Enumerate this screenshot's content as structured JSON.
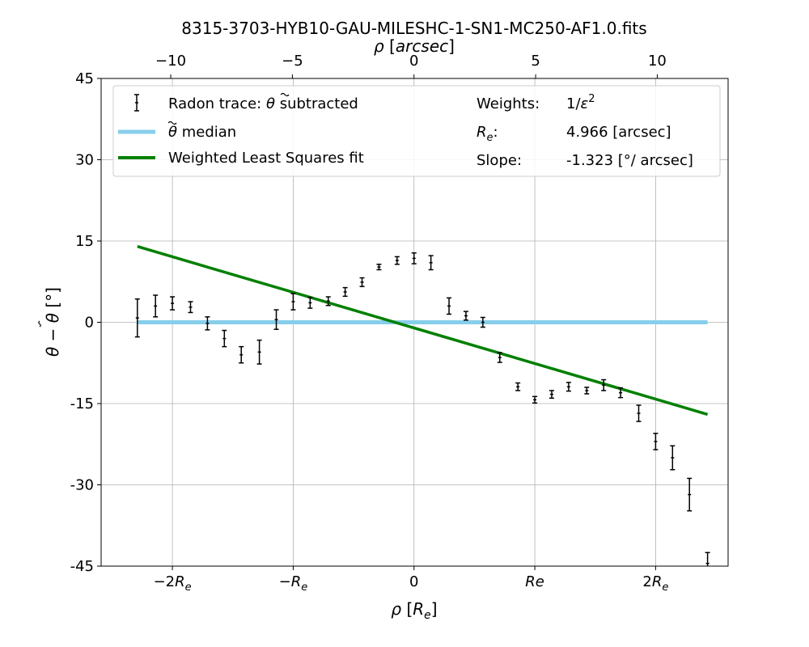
{
  "chart_data": {
    "type": "scatter",
    "title": "8315-3703-HYB10-GAU-MILESHC-1-SN1-MC250-AF1.0.fits",
    "xlabel": "ρ [R_e]",
    "ylabel": "θ − θ̃ [°]",
    "top_xlabel": "ρ [arcsec]",
    "xlim": [
      -2.59,
      2.6
    ],
    "ylim": [
      -45,
      45
    ],
    "grid": true,
    "legend_placement": "top",
    "x_ticks": [
      {
        "value": -2,
        "label": "−2R_e"
      },
      {
        "value": -1,
        "label": "−R_e"
      },
      {
        "value": 0,
        "label": "0"
      },
      {
        "value": 1,
        "label": "Re"
      },
      {
        "value": 2,
        "label": "2R_e"
      }
    ],
    "top_x_ticks": [
      {
        "value": -10,
        "label": "−10"
      },
      {
        "value": -5,
        "label": "−5"
      },
      {
        "value": 0,
        "label": "0"
      },
      {
        "value": 5,
        "label": "5"
      },
      {
        "value": 10,
        "label": "10"
      }
    ],
    "y_ticks": [
      {
        "value": 45,
        "label": "45"
      },
      {
        "value": 30,
        "label": "30"
      },
      {
        "value": 15,
        "label": "15"
      },
      {
        "value": 0,
        "label": "0"
      },
      {
        "value": -15,
        "label": "-15"
      },
      {
        "value": -30,
        "label": "-30"
      },
      {
        "value": -45,
        "label": "-45"
      }
    ],
    "series": [
      {
        "name": "Radon trace: θ̃ subtracted",
        "type": "errorbar",
        "color": "#000000",
        "points": [
          {
            "x": -2.29,
            "y": 0.8,
            "err": 3.5
          },
          {
            "x": -2.14,
            "y": 3.0,
            "err": 2.0
          },
          {
            "x": -2.0,
            "y": 3.5,
            "err": 1.2
          },
          {
            "x": -1.85,
            "y": 2.8,
            "err": 1.0
          },
          {
            "x": -1.71,
            "y": -0.2,
            "err": 1.2
          },
          {
            "x": -1.57,
            "y": -3.0,
            "err": 1.5
          },
          {
            "x": -1.43,
            "y": -6.0,
            "err": 1.5
          },
          {
            "x": -1.28,
            "y": -5.5,
            "err": 2.2
          },
          {
            "x": -1.14,
            "y": 0.5,
            "err": 1.8
          },
          {
            "x": -1.0,
            "y": 3.8,
            "err": 1.5
          },
          {
            "x": -0.86,
            "y": 3.6,
            "err": 1.0
          },
          {
            "x": -0.71,
            "y": 3.9,
            "err": 0.8
          },
          {
            "x": -0.57,
            "y": 5.6,
            "err": 0.8
          },
          {
            "x": -0.43,
            "y": 7.4,
            "err": 0.8
          },
          {
            "x": -0.29,
            "y": 10.2,
            "err": 0.5
          },
          {
            "x": -0.14,
            "y": 11.4,
            "err": 0.7
          },
          {
            "x": 0.0,
            "y": 11.8,
            "err": 1.0
          },
          {
            "x": 0.14,
            "y": 11.0,
            "err": 1.3
          },
          {
            "x": 0.29,
            "y": 3.0,
            "err": 1.5
          },
          {
            "x": 0.43,
            "y": 1.2,
            "err": 0.8
          },
          {
            "x": 0.57,
            "y": 0.0,
            "err": 0.9
          },
          {
            "x": 0.71,
            "y": -6.5,
            "err": 0.9
          },
          {
            "x": 0.86,
            "y": -11.9,
            "err": 0.7
          },
          {
            "x": 1.0,
            "y": -14.3,
            "err": 0.6
          },
          {
            "x": 1.14,
            "y": -13.3,
            "err": 0.7
          },
          {
            "x": 1.28,
            "y": -11.9,
            "err": 0.8
          },
          {
            "x": 1.43,
            "y": -12.6,
            "err": 0.6
          },
          {
            "x": 1.57,
            "y": -11.6,
            "err": 1.0
          },
          {
            "x": 1.71,
            "y": -13.0,
            "err": 0.9
          },
          {
            "x": 1.86,
            "y": -16.8,
            "err": 1.5
          },
          {
            "x": 2.0,
            "y": -22.0,
            "err": 1.5
          },
          {
            "x": 2.14,
            "y": -25.0,
            "err": 2.2
          },
          {
            "x": 2.28,
            "y": -31.8,
            "err": 3.0
          },
          {
            "x": 2.43,
            "y": -44.5,
            "err": 2.0
          }
        ]
      },
      {
        "name": "θ̃ median",
        "type": "line",
        "color": "#87ceeb",
        "points": [
          {
            "x": -2.29,
            "y": 0
          },
          {
            "x": 2.43,
            "y": 0
          }
        ]
      },
      {
        "name": "Weighted Least Squares fit",
        "type": "line",
        "color": "#008000",
        "points": [
          {
            "x": -2.29,
            "y": 14.0
          },
          {
            "x": 2.43,
            "y": -17.0
          }
        ]
      }
    ],
    "info": [
      {
        "label": "Weights:",
        "value": "1/ε²"
      },
      {
        "label": "R_e:",
        "value": "4.966 [arcsec]"
      },
      {
        "label": "Slope:",
        "value": "-1.323 [°/ arcsec]"
      }
    ],
    "arcsec_per_re": 4.966
  }
}
